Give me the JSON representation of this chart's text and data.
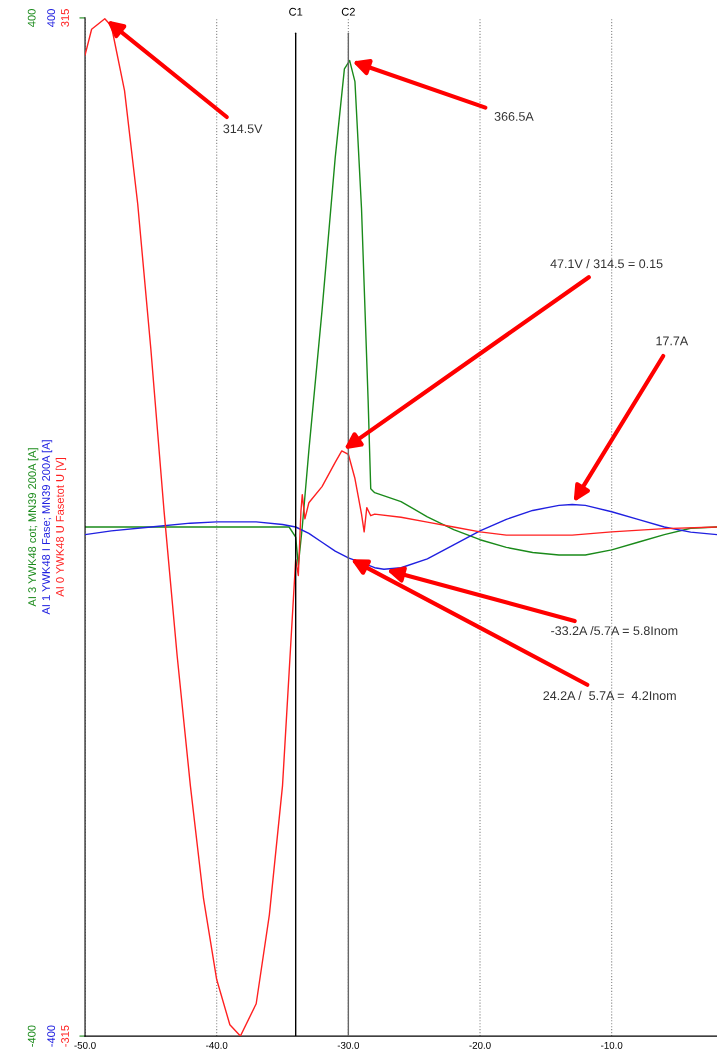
{
  "chart_data": {
    "type": "line",
    "xlim": [
      -50,
      -2
    ],
    "xticks": [
      {
        "value": -50,
        "label": "-50.0"
      },
      {
        "value": -40,
        "label": "-40.0"
      },
      {
        "value": -30,
        "label": "-30.0"
      },
      {
        "value": -20,
        "label": "-20.0"
      },
      {
        "value": -10,
        "label": "-10.0"
      }
    ],
    "ylim": [
      -400,
      400
    ],
    "yticks": [
      -400,
      400
    ],
    "ylabel": "AI 3 YWK48 cot; MN39 200A [A]",
    "y2lim": [
      -400,
      400
    ],
    "y2ticks": [
      -400,
      400
    ],
    "y2label": "AI 1 YWK48 I Fase; MN39 200A [A]",
    "y3lim": [
      -315,
      315
    ],
    "y3ticks": [
      -315,
      315
    ],
    "y3label": "AI 0 YWK48 U Fasetot U [V]",
    "grid": "x",
    "series": [
      {
        "axis": "y",
        "color": "#1a8a1a",
        "x": [
          -50,
          -34.5,
          -34,
          -33.8,
          -33.5,
          -33,
          -32,
          -31,
          -30.3,
          -29.9,
          -29.5,
          -29,
          -28.5,
          -28.3,
          -28,
          -26,
          -24,
          -22,
          -20,
          -18,
          -16,
          -14,
          -12,
          -10,
          -8,
          -6,
          -4,
          -2
        ],
        "values": [
          0,
          0,
          -8,
          -30,
          0,
          60,
          170,
          290,
          360,
          366.5,
          350,
          250,
          100,
          30,
          27,
          20,
          8,
          -2,
          -10,
          -16,
          -20,
          -22,
          -22,
          -18,
          -12,
          -6,
          -1,
          0
        ]
      },
      {
        "axis": "y2",
        "color": "#2020e0",
        "x": [
          -50,
          -48,
          -45,
          -42,
          -40,
          -37,
          -35,
          -34,
          -33,
          -32,
          -31,
          -30,
          -29,
          -28,
          -27.3,
          -26,
          -24,
          -22,
          -20,
          -18,
          -16,
          -14,
          -13,
          -12,
          -10,
          -8,
          -6,
          -4,
          -2
        ],
        "values": [
          -6,
          -3,
          0,
          3,
          4,
          4,
          2,
          0,
          -5,
          -12,
          -19,
          -24.2,
          -28,
          -32,
          -33.2,
          -32,
          -25,
          -14,
          -3,
          6,
          13,
          17,
          17.7,
          17,
          12,
          6,
          0,
          -4,
          -6
        ]
      },
      {
        "axis": "y3",
        "color": "#ff2020",
        "x": [
          -50,
          -49.5,
          -48.5,
          -48,
          -47,
          -46,
          -45,
          -44,
          -43,
          -42,
          -41,
          -40,
          -39,
          -38.2,
          -37,
          -36,
          -35,
          -34.5,
          -34,
          -33.8,
          -33.6,
          -33.5,
          -33.3,
          -33,
          -32,
          -31,
          -30.5,
          -30,
          -29.5,
          -29,
          -28.8,
          -28.6,
          -28.3,
          -28,
          -26,
          -24,
          -22,
          -20,
          -18,
          -15,
          -13,
          -10,
          -6,
          -2
        ],
        "values": [
          292,
          308,
          314.5,
          310,
          270,
          200,
          110,
          10,
          -80,
          -160,
          -230,
          -280,
          -308,
          -315,
          -295,
          -240,
          -160,
          -90,
          -20,
          -30,
          10,
          20,
          5,
          15,
          25,
          40,
          47.1,
          45,
          30,
          8,
          -3,
          12,
          7,
          8,
          6,
          3,
          0,
          -3,
          -5,
          -5,
          -5,
          -3,
          -1,
          0
        ]
      }
    ],
    "ref_lines": [
      {
        "axis": "x",
        "value": -34,
        "label": "C1",
        "color": "#000000"
      },
      {
        "axis": "x",
        "value": -30,
        "label": "C2",
        "color": "#666666"
      }
    ],
    "annotations": [
      {
        "text": "314.5V",
        "x": -48.5,
        "y": 399.4
      },
      {
        "text": "366.5A",
        "x": -29.9,
        "y": 366.5
      },
      {
        "text": "47.1V / 314.5 = 0.15",
        "x": -30.5,
        "y": 59.8
      },
      {
        "text": "17.7A",
        "x": -13,
        "y": 17.7
      },
      {
        "text": "-33.2A /5.7A = 5.8Inom",
        "x": -27.3,
        "y": -33.2
      },
      {
        "text": "24.2A /  5.7A =  4.2Inom",
        "x": -30,
        "y": -24.2
      }
    ]
  }
}
